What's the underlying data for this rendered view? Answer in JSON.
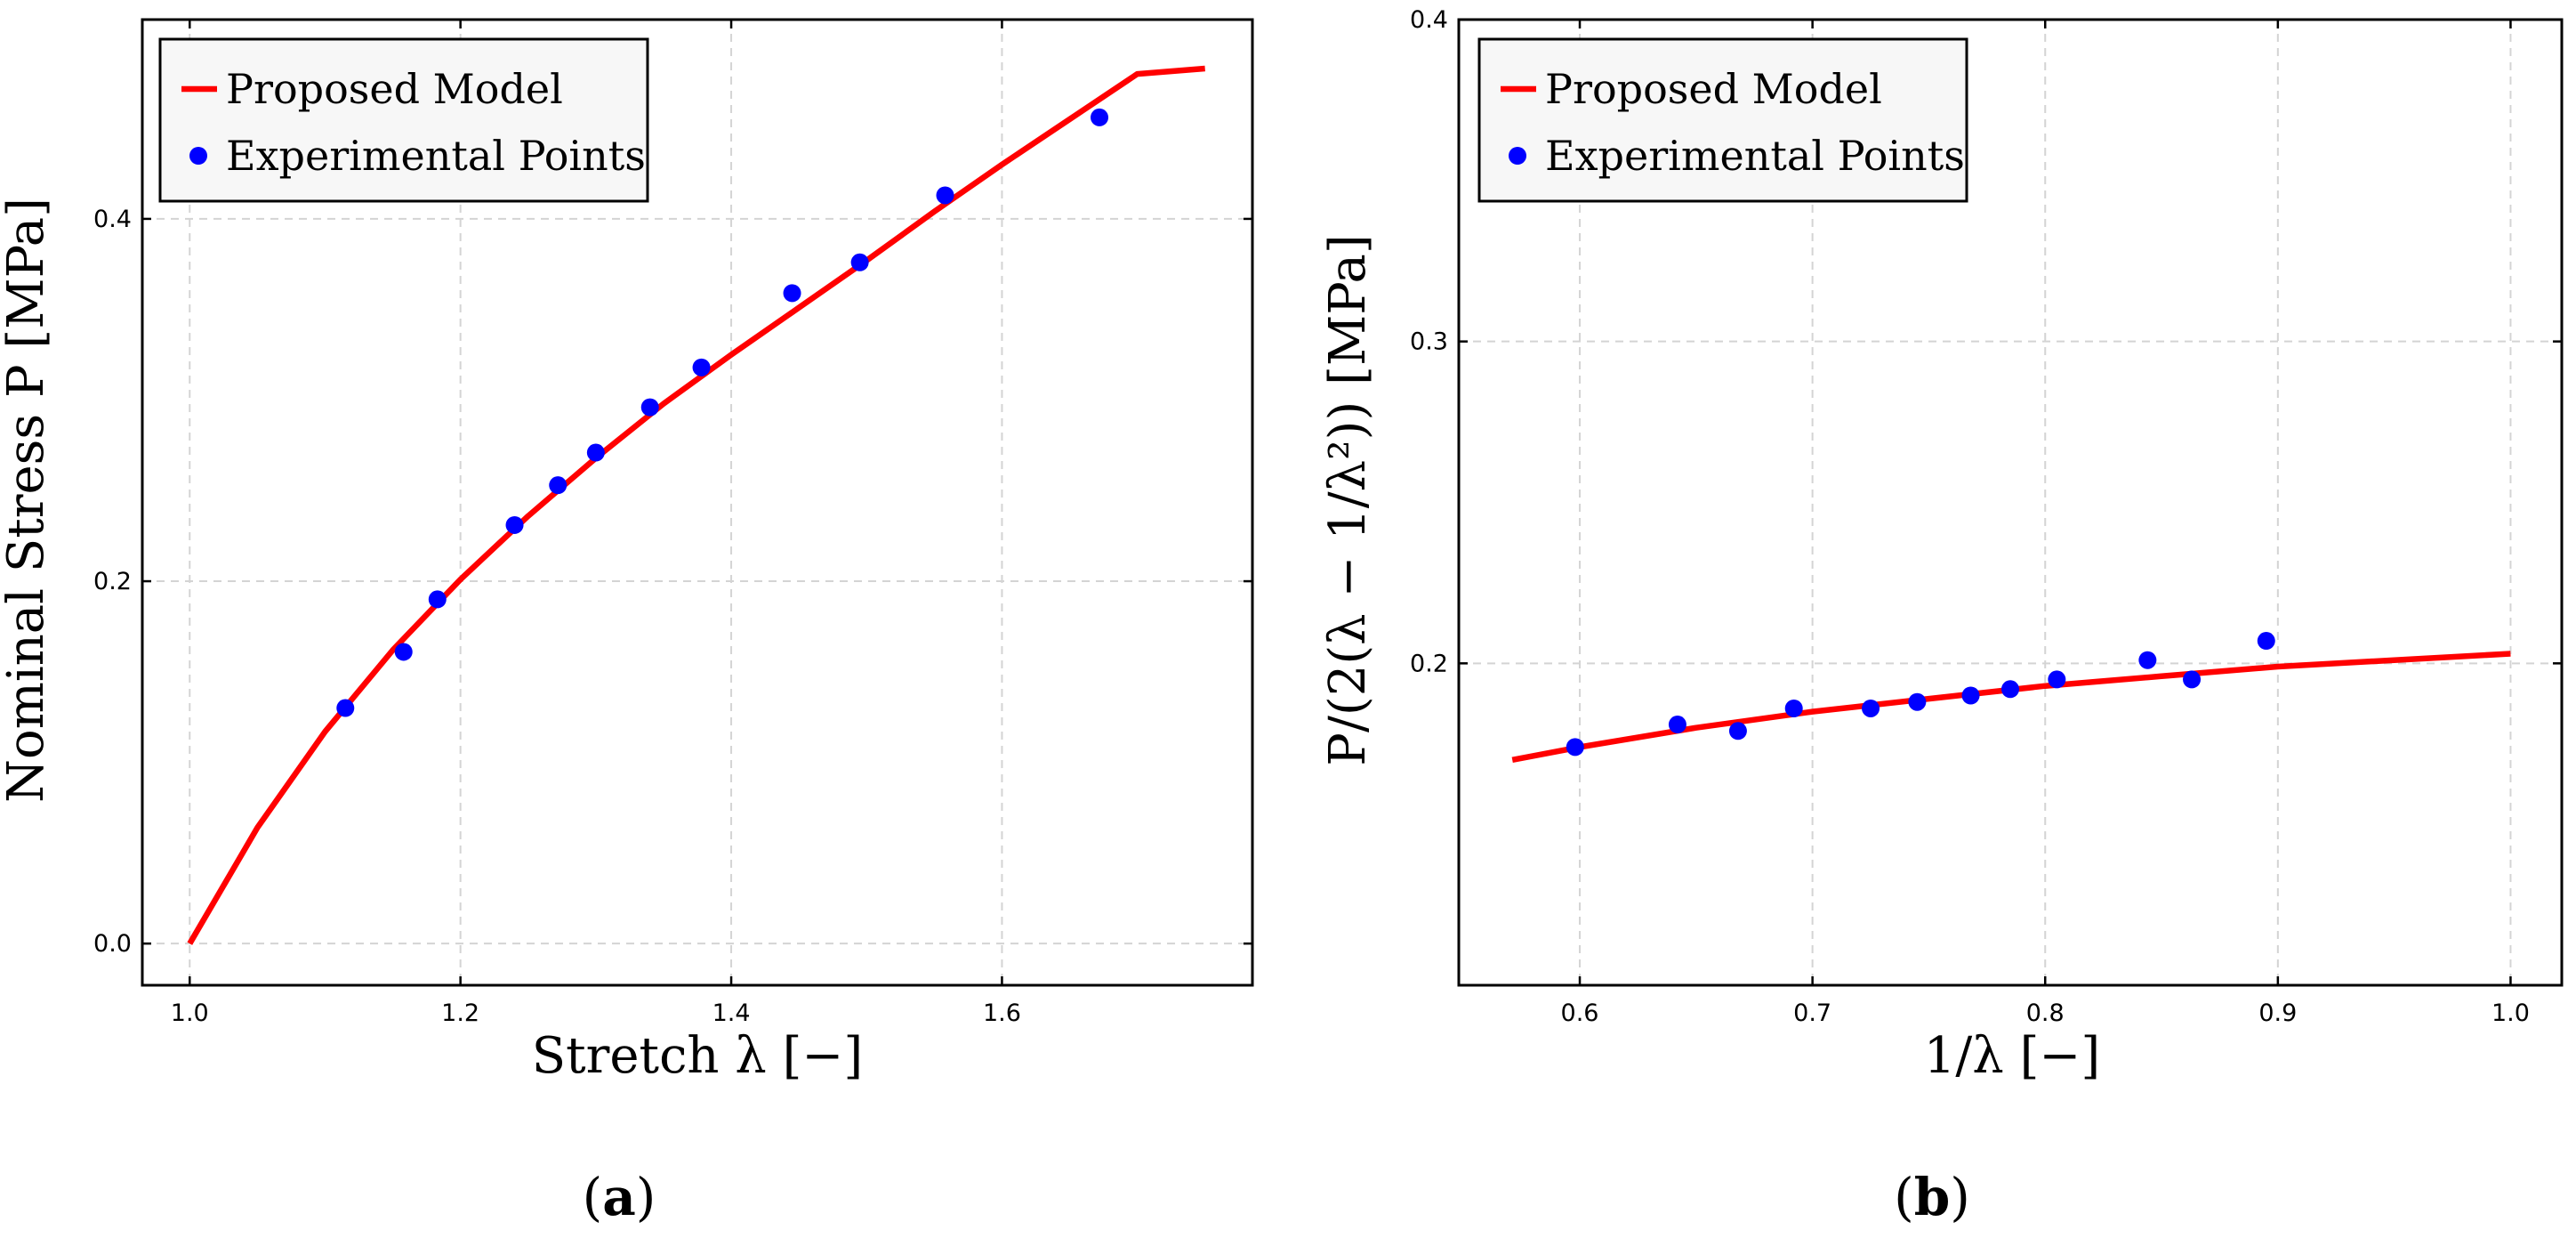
{
  "chart_data": [
    {
      "type": "line",
      "panel_label": "(a)",
      "panel_letter": "a",
      "xlabel": "Stretch λ [−]",
      "ylabel": "Nominal Stress P [MPa]",
      "xlim": [
        0.965,
        1.785
      ],
      "ylim": [
        -0.023,
        0.51
      ],
      "xticks": [
        1.0,
        1.2,
        1.4,
        1.6
      ],
      "xtick_labels": [
        "1.0",
        "1.2",
        "1.4",
        "1.6"
      ],
      "yticks": [
        0.0,
        0.2,
        0.4
      ],
      "ytick_labels": [
        "0.0",
        "0.2",
        "0.4"
      ],
      "grid": true,
      "legend_position": "top-left",
      "series": [
        {
          "name": "Proposed Model",
          "kind": "line",
          "color": "#ff0000",
          "x": [
            1.0,
            1.05,
            1.1,
            1.15,
            1.2,
            1.25,
            1.3,
            1.35,
            1.4,
            1.45,
            1.5,
            1.55,
            1.6,
            1.65,
            1.7,
            1.75
          ],
          "y": [
            0.0,
            0.064,
            0.117,
            0.162,
            0.201,
            0.236,
            0.268,
            0.298,
            0.325,
            0.351,
            0.377,
            0.404,
            0.43,
            0.455,
            0.48,
            0.483
          ]
        },
        {
          "name": "Experimental Points",
          "kind": "scatter",
          "color": "#0000ff",
          "x": [
            1.115,
            1.158,
            1.183,
            1.24,
            1.272,
            1.3,
            1.34,
            1.378,
            1.445,
            1.495,
            1.558,
            1.672
          ],
          "y": [
            0.13,
            0.161,
            0.19,
            0.231,
            0.253,
            0.271,
            0.296,
            0.318,
            0.359,
            0.376,
            0.413,
            0.456
          ]
        }
      ]
    },
    {
      "type": "line",
      "panel_label": "(b)",
      "panel_letter": "b",
      "xlabel": "1/λ [−]",
      "ylabel": "P/(2(λ − 1/λ²)) [MPa]",
      "xlim": [
        0.548,
        1.022
      ],
      "ylim": [
        0.1,
        0.4
      ],
      "xticks": [
        0.6,
        0.7,
        0.8,
        0.9,
        1.0
      ],
      "xtick_labels": [
        "0.6",
        "0.7",
        "0.8",
        "0.9",
        "1.0"
      ],
      "yticks": [
        0.2,
        0.3,
        0.4
      ],
      "ytick_labels": [
        "0.2",
        "0.3",
        "0.4"
      ],
      "grid": true,
      "legend_position": "top-left",
      "series": [
        {
          "name": "Proposed Model",
          "kind": "line",
          "color": "#ff0000",
          "x": [
            0.571,
            0.6,
            0.65,
            0.7,
            0.75,
            0.8,
            0.85,
            0.9,
            0.95,
            1.0
          ],
          "y": [
            0.17,
            0.174,
            0.18,
            0.185,
            0.189,
            0.193,
            0.196,
            0.199,
            0.201,
            0.203
          ]
        },
        {
          "name": "Experimental Points",
          "kind": "scatter",
          "color": "#0000ff",
          "x": [
            0.598,
            0.642,
            0.668,
            0.692,
            0.725,
            0.745,
            0.768,
            0.785,
            0.805,
            0.844,
            0.863,
            0.895
          ],
          "y": [
            0.174,
            0.181,
            0.179,
            0.186,
            0.186,
            0.188,
            0.19,
            0.192,
            0.195,
            0.201,
            0.195,
            0.207
          ]
        }
      ]
    }
  ]
}
